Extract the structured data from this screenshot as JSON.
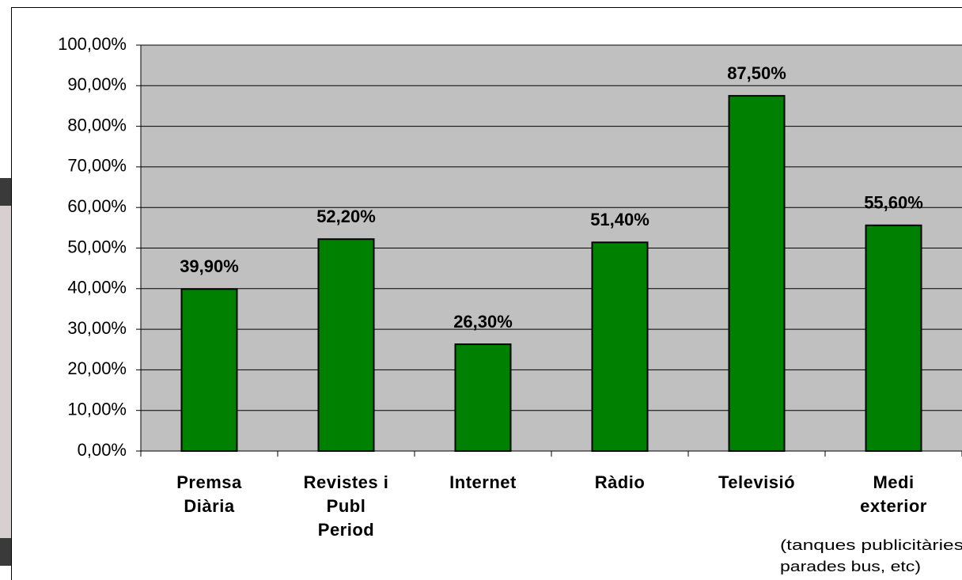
{
  "chart_data": {
    "type": "bar",
    "categories": [
      "Premsa\nDiària",
      "Revistes i\nPubl\nPeriod",
      "Internet",
      "Ràdio",
      "Televisió",
      "Medi\nexterior"
    ],
    "values": [
      39.9,
      52.2,
      26.3,
      51.4,
      87.5,
      55.6
    ],
    "value_labels": [
      "39,90%",
      "52,20%",
      "26,30%",
      "51,40%",
      "87,50%",
      "55,60%"
    ],
    "color": "#008000",
    "annotation": [
      "(tanques publicitàries",
      "parades bus, etc)"
    ],
    "ylim": [
      0,
      100
    ],
    "yticks": [
      {
        "value": 0,
        "label": "0,00%"
      },
      {
        "value": 10,
        "label": "10,00%"
      },
      {
        "value": 20,
        "label": "20,00%"
      },
      {
        "value": 30,
        "label": "30,00%"
      },
      {
        "value": 40,
        "label": "40,00%"
      },
      {
        "value": 50,
        "label": "50,00%"
      },
      {
        "value": 60,
        "label": "60,00%"
      },
      {
        "value": 70,
        "label": "70,00%"
      },
      {
        "value": 80,
        "label": "80,00%"
      },
      {
        "value": 90,
        "label": "90,00%"
      },
      {
        "value": 100,
        "label": "100,00%"
      }
    ],
    "grid": true
  }
}
